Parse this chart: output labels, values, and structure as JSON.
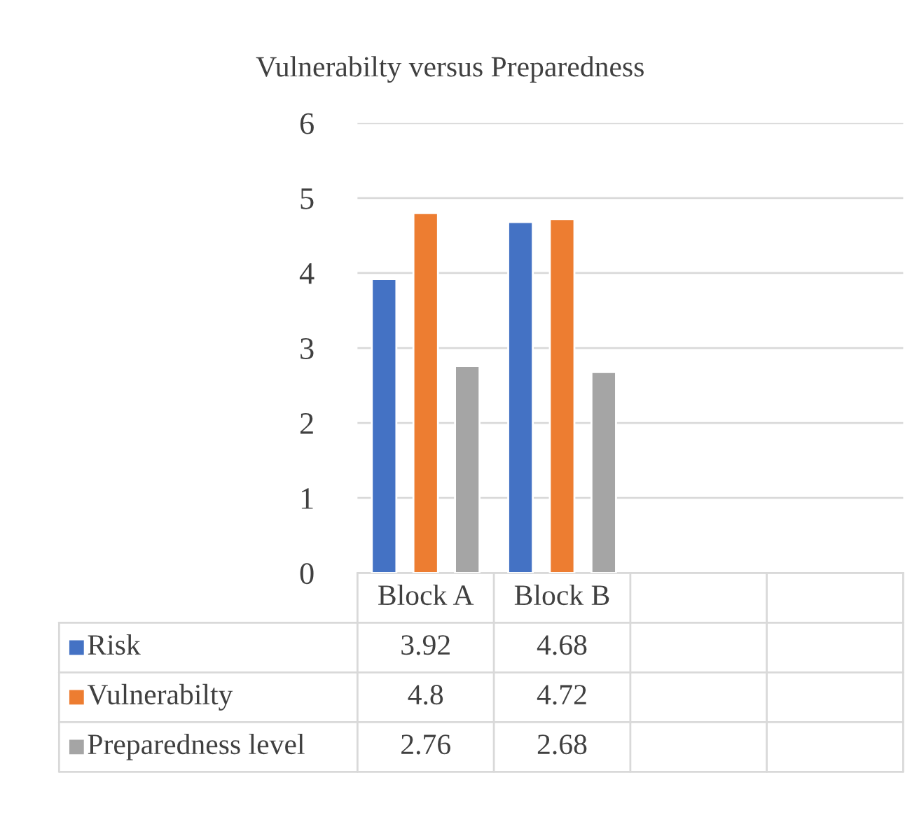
{
  "chart_data": {
    "type": "bar",
    "title": "Vulnerabilty versus Preparedness",
    "categories": [
      "Block A",
      "Block B",
      null,
      null
    ],
    "series": [
      {
        "name": "Risk",
        "color": "#4472c4",
        "values": [
          3.92,
          4.68,
          null,
          null
        ]
      },
      {
        "name": "Vulnerabilty",
        "color": "#ed7d31",
        "values": [
          4.8,
          4.72,
          null,
          null
        ]
      },
      {
        "name": "Preparedness level",
        "color": "#a5a5a5",
        "values": [
          2.76,
          2.68,
          null,
          null
        ]
      }
    ],
    "ylim": [
      0,
      6
    ],
    "yticks": [
      0,
      1,
      2,
      3,
      4,
      5,
      6
    ],
    "grid": "y",
    "data_labels": true,
    "legend": "bottom left"
  }
}
